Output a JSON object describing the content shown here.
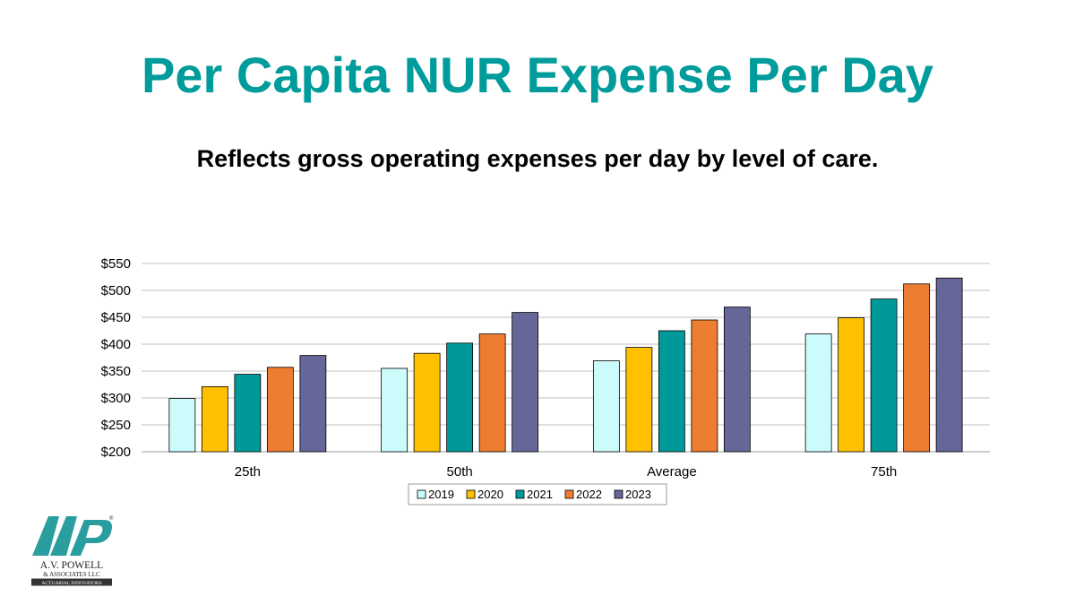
{
  "slide": {
    "title": "Per Capita NUR Expense Per Day",
    "subtitle": "Reflects gross operating expenses per day by level of care.",
    "title_color": "#009b9b"
  },
  "logo": {
    "name_line1": "A.V. POWELL",
    "name_line2": "& ASSOCIATES LLC",
    "tagline": "ACTUARIAL INNOVATORS",
    "primary_color": "#2a9d9f"
  },
  "chart_data": {
    "type": "bar",
    "title": "",
    "xlabel": "",
    "ylabel": "",
    "categories": [
      "25th",
      "50th",
      "Average",
      "75th"
    ],
    "series": [
      {
        "name": "2019",
        "color": "#ccfbfb",
        "values": [
          299,
          355,
          369,
          419
        ]
      },
      {
        "name": "2020",
        "color": "#ffc000",
        "values": [
          321,
          383,
          394,
          449
        ]
      },
      {
        "name": "2021",
        "color": "#009999",
        "values": [
          344,
          402,
          425,
          484
        ]
      },
      {
        "name": "2022",
        "color": "#ed7d31",
        "values": [
          357,
          419,
          445,
          512
        ]
      },
      {
        "name": "2023",
        "color": "#666699",
        "values": [
          379,
          459,
          469,
          523
        ]
      }
    ],
    "ylim": [
      200,
      550
    ],
    "y_ticks": [
      {
        "value": 200,
        "label": "$200"
      },
      {
        "value": 250,
        "label": "$250"
      },
      {
        "value": 300,
        "label": "$300"
      },
      {
        "value": 350,
        "label": "$350"
      },
      {
        "value": 400,
        "label": "$400"
      },
      {
        "value": 450,
        "label": "$450"
      },
      {
        "value": 500,
        "label": "$500"
      },
      {
        "value": 550,
        "label": "$550"
      }
    ],
    "grid": true,
    "legend_position": "bottom"
  }
}
